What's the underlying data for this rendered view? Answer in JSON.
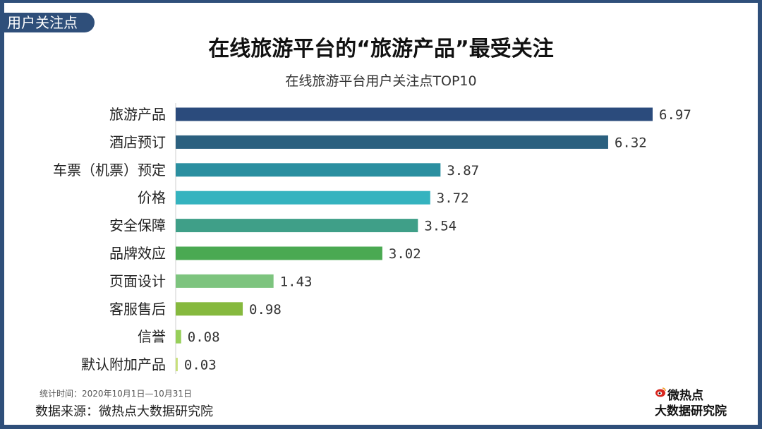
{
  "tag": "用户关注点",
  "footer": {
    "time": "统计时间：2020年10月1日—10月31日",
    "source": "数据来源：微热点大数据研究院"
  },
  "logo": {
    "top": "微热点",
    "bottom": "大数据研究院",
    "mark": "weibo-eye-icon"
  },
  "chart_data": {
    "type": "bar",
    "orientation": "horizontal",
    "title": "在线旅游平台的“旅游产品”最受关注",
    "subtitle": "在线旅游平台用户关注点TOP10",
    "categories": [
      "旅游产品",
      "酒店预订",
      "车票（机票）预定",
      "价格",
      "安全保障",
      "品牌效应",
      "页面设计",
      "客服售后",
      "信誉",
      "默认附加产品"
    ],
    "values": [
      6.97,
      6.32,
      3.87,
      3.72,
      3.54,
      3.02,
      1.43,
      0.98,
      0.08,
      0.03
    ],
    "value_labels": [
      "6.97",
      "6.32",
      "3.87",
      "3.72",
      "3.54",
      "3.02",
      "1.43",
      "0.98",
      "0.08",
      "0.03"
    ],
    "colors": [
      "#2b4b7c",
      "#2b607f",
      "#2b8fa0",
      "#35b3bf",
      "#3f9f88",
      "#4aa952",
      "#7dc47e",
      "#86b93e",
      "#97cf5a",
      "#c8e07a"
    ],
    "xlim": [
      0,
      7
    ],
    "grid": false,
    "legend": "none"
  }
}
